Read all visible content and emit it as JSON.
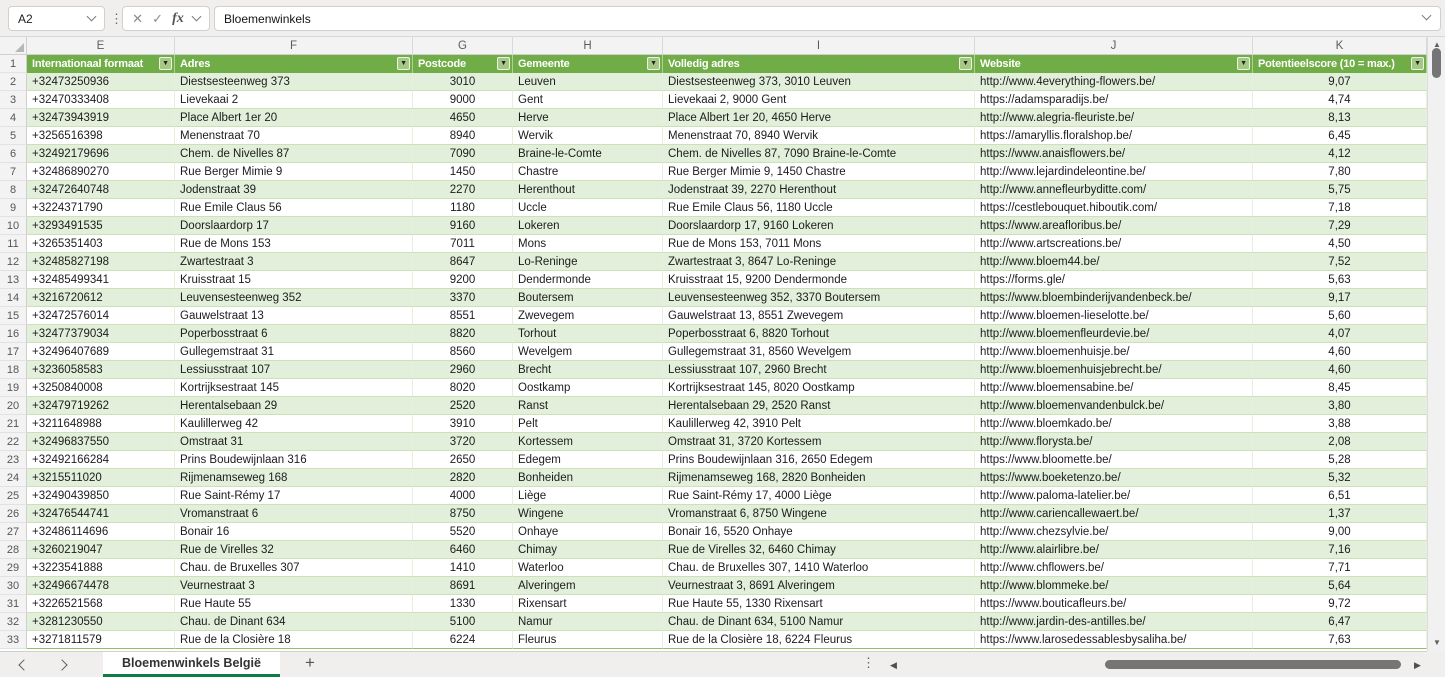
{
  "formula_bar": {
    "name_box": "A2",
    "formula": "Bloemenwinkels"
  },
  "icons": {
    "kebab": "⋮",
    "cancel": "✕",
    "confirm": "✓",
    "fx": "fx",
    "filter_arrow": "▼",
    "up": "▲",
    "down": "▼",
    "left": "◀",
    "right": "▶",
    "add": "+"
  },
  "colors": {
    "header_green": "#70AD47",
    "band_green": "#E2EFDA",
    "active_tab_green": "#107C41"
  },
  "grid": {
    "header_row_number": "1",
    "column_letters": [
      "E",
      "F",
      "G",
      "H",
      "I",
      "J",
      "K"
    ],
    "columns": [
      {
        "label": "Internationaal formaat"
      },
      {
        "label": "Adres"
      },
      {
        "label": "Postcode"
      },
      {
        "label": "Gemeente"
      },
      {
        "label": "Volledig adres"
      },
      {
        "label": "Website"
      },
      {
        "label": "Potentieelscore (10 = max.)"
      }
    ]
  },
  "rows": [
    {
      "row": "2",
      "phone": "+32473250936",
      "adres": "Diestsesteenweg 373",
      "postcode": "3010",
      "gemeente": "Leuven",
      "volledig": "Diestsesteenweg 373, 3010 Leuven",
      "website": "http://www.4everything-flowers.be/",
      "score": "9,07"
    },
    {
      "row": "3",
      "phone": "+32470333408",
      "adres": "Lievekaai 2",
      "postcode": "9000",
      "gemeente": "Gent",
      "volledig": "Lievekaai 2, 9000 Gent",
      "website": "https://adamsparadijs.be/",
      "score": "4,74"
    },
    {
      "row": "4",
      "phone": "+32473943919",
      "adres": "Place Albert 1er 20",
      "postcode": "4650",
      "gemeente": "Herve",
      "volledig": "Place Albert 1er 20, 4650 Herve",
      "website": "http://www.alegria-fleuriste.be/",
      "score": "8,13"
    },
    {
      "row": "5",
      "phone": "+3256516398",
      "adres": "Menenstraat 70",
      "postcode": "8940",
      "gemeente": "Wervik",
      "volledig": "Menenstraat 70, 8940 Wervik",
      "website": "https://amaryllis.floralshop.be/",
      "score": "6,45"
    },
    {
      "row": "6",
      "phone": "+32492179696",
      "adres": "Chem. de Nivelles 87",
      "postcode": "7090",
      "gemeente": "Braine-le-Comte",
      "volledig": "Chem. de Nivelles 87, 7090 Braine-le-Comte",
      "website": "https://www.anaisflowers.be/",
      "score": "4,12"
    },
    {
      "row": "7",
      "phone": "+32486890270",
      "adres": "Rue Berger Mimie 9",
      "postcode": "1450",
      "gemeente": "Chastre",
      "volledig": "Rue Berger Mimie 9, 1450 Chastre",
      "website": "http://www.lejardindeleontine.be/",
      "score": "7,80"
    },
    {
      "row": "8",
      "phone": "+32472640748",
      "adres": "Jodenstraat 39",
      "postcode": "2270",
      "gemeente": "Herenthout",
      "volledig": "Jodenstraat 39, 2270 Herenthout",
      "website": "http://www.annefleurbyditte.com/",
      "score": "5,75"
    },
    {
      "row": "9",
      "phone": "+3224371790",
      "adres": "Rue Emile Claus 56",
      "postcode": "1180",
      "gemeente": "Uccle",
      "volledig": "Rue Emile Claus 56, 1180 Uccle",
      "website": "https://cestlebouquet.hiboutik.com/",
      "score": "7,18"
    },
    {
      "row": "10",
      "phone": "+3293491535",
      "adres": "Doorslaardorp 17",
      "postcode": "9160",
      "gemeente": "Lokeren",
      "volledig": "Doorslaardorp 17, 9160 Lokeren",
      "website": "https://www.areafloribus.be/",
      "score": "7,29"
    },
    {
      "row": "11",
      "phone": "+3265351403",
      "adres": "Rue de Mons 153",
      "postcode": "7011",
      "gemeente": "Mons",
      "volledig": "Rue de Mons 153, 7011 Mons",
      "website": "http://www.artscreations.be/",
      "score": "4,50"
    },
    {
      "row": "12",
      "phone": "+32485827198",
      "adres": "Zwartestraat 3",
      "postcode": "8647",
      "gemeente": "Lo-Reninge",
      "volledig": "Zwartestraat 3, 8647 Lo-Reninge",
      "website": "http://www.bloem44.be/",
      "score": "7,52"
    },
    {
      "row": "13",
      "phone": "+32485499341",
      "adres": "Kruisstraat 15",
      "postcode": "9200",
      "gemeente": "Dendermonde",
      "volledig": "Kruisstraat 15, 9200 Dendermonde",
      "website": "https://forms.gle/",
      "score": "5,63"
    },
    {
      "row": "14",
      "phone": "+3216720612",
      "adres": "Leuvensesteenweg 352",
      "postcode": "3370",
      "gemeente": "Boutersem",
      "volledig": "Leuvensesteenweg 352, 3370 Boutersem",
      "website": "https://www.bloembinderijvandenbeck.be/",
      "score": "9,17"
    },
    {
      "row": "15",
      "phone": "+32472576014",
      "adres": "Gauwelstraat 13",
      "postcode": "8551",
      "gemeente": "Zwevegem",
      "volledig": "Gauwelstraat 13, 8551 Zwevegem",
      "website": "http://www.bloemen-lieselotte.be/",
      "score": "5,60"
    },
    {
      "row": "16",
      "phone": "+32477379034",
      "adres": "Poperbosstraat 6",
      "postcode": "8820",
      "gemeente": "Torhout",
      "volledig": "Poperbosstraat 6, 8820 Torhout",
      "website": "http://www.bloemenfleurdevie.be/",
      "score": "4,07"
    },
    {
      "row": "17",
      "phone": "+32496407689",
      "adres": "Gullegemstraat 31",
      "postcode": "8560",
      "gemeente": "Wevelgem",
      "volledig": "Gullegemstraat 31, 8560 Wevelgem",
      "website": "http://www.bloemenhuisje.be/",
      "score": "4,60"
    },
    {
      "row": "18",
      "phone": "+3236058583",
      "adres": "Lessiusstraat 107",
      "postcode": "2960",
      "gemeente": "Brecht",
      "volledig": "Lessiusstraat 107, 2960 Brecht",
      "website": "http://www.bloemenhuisjebrecht.be/",
      "score": "4,60"
    },
    {
      "row": "19",
      "phone": "+3250840008",
      "adres": "Kortrijksestraat 145",
      "postcode": "8020",
      "gemeente": "Oostkamp",
      "volledig": "Kortrijksestraat 145, 8020 Oostkamp",
      "website": "http://www.bloemensabine.be/",
      "score": "8,45"
    },
    {
      "row": "20",
      "phone": "+32479719262",
      "adres": "Herentalsebaan 29",
      "postcode": "2520",
      "gemeente": "Ranst",
      "volledig": "Herentalsebaan 29, 2520 Ranst",
      "website": "http://www.bloemenvandenbulck.be/",
      "score": "3,80"
    },
    {
      "row": "21",
      "phone": "+3211648988",
      "adres": "Kaulillerweg 42",
      "postcode": "3910",
      "gemeente": "Pelt",
      "volledig": "Kaulillerweg 42, 3910 Pelt",
      "website": "http://www.bloemkado.be/",
      "score": "3,88"
    },
    {
      "row": "22",
      "phone": "+32496837550",
      "adres": "Omstraat 31",
      "postcode": "3720",
      "gemeente": "Kortessem",
      "volledig": "Omstraat 31, 3720 Kortessem",
      "website": "http://www.florysta.be/",
      "score": "2,08"
    },
    {
      "row": "23",
      "phone": "+32492166284",
      "adres": "Prins Boudewijnlaan 316",
      "postcode": "2650",
      "gemeente": "Edegem",
      "volledig": "Prins Boudewijnlaan 316, 2650 Edegem",
      "website": "https://www.bloomette.be/",
      "score": "5,28"
    },
    {
      "row": "24",
      "phone": "+3215511020",
      "adres": "Rijmenamseweg 168",
      "postcode": "2820",
      "gemeente": "Bonheiden",
      "volledig": "Rijmenamseweg 168, 2820 Bonheiden",
      "website": "https://www.boeketenzo.be/",
      "score": "5,32"
    },
    {
      "row": "25",
      "phone": "+32490439850",
      "adres": "Rue Saint-Rémy 17",
      "postcode": "4000",
      "gemeente": "Liège",
      "volledig": "Rue Saint-Rémy 17, 4000 Liège",
      "website": "http://www.paloma-latelier.be/",
      "score": "6,51"
    },
    {
      "row": "26",
      "phone": "+32476544741",
      "adres": "Vromanstraat 6",
      "postcode": "8750",
      "gemeente": "Wingene",
      "volledig": "Vromanstraat 6, 8750 Wingene",
      "website": "http://www.cariencallewaert.be/",
      "score": "1,37"
    },
    {
      "row": "27",
      "phone": "+32486114696",
      "adres": "Bonair 16",
      "postcode": "5520",
      "gemeente": "Onhaye",
      "volledig": "Bonair 16, 5520 Onhaye",
      "website": "http://www.chezsylvie.be/",
      "score": "9,00"
    },
    {
      "row": "28",
      "phone": "+3260219047",
      "adres": "Rue de Virelles 32",
      "postcode": "6460",
      "gemeente": "Chimay",
      "volledig": "Rue de Virelles 32, 6460 Chimay",
      "website": "http://www.alairlibre.be/",
      "score": "7,16"
    },
    {
      "row": "29",
      "phone": "+3223541888",
      "adres": "Chau. de Bruxelles 307",
      "postcode": "1410",
      "gemeente": "Waterloo",
      "volledig": "Chau. de Bruxelles 307, 1410 Waterloo",
      "website": "http://www.chflowers.be/",
      "score": "7,71"
    },
    {
      "row": "30",
      "phone": "+32496674478",
      "adres": "Veurnestraat 3",
      "postcode": "8691",
      "gemeente": "Alveringem",
      "volledig": "Veurnestraat 3, 8691 Alveringem",
      "website": "http://www.blommeke.be/",
      "score": "5,64"
    },
    {
      "row": "31",
      "phone": "+3226521568",
      "adres": "Rue Haute 55",
      "postcode": "1330",
      "gemeente": "Rixensart",
      "volledig": "Rue Haute 55, 1330 Rixensart",
      "website": "https://www.bouticafleurs.be/",
      "score": "9,72"
    },
    {
      "row": "32",
      "phone": "+3281230550",
      "adres": "Chau. de Dinant 634",
      "postcode": "5100",
      "gemeente": "Namur",
      "volledig": "Chau. de Dinant 634, 5100 Namur",
      "website": "http://www.jardin-des-antilles.be/",
      "score": "6,47"
    },
    {
      "row": "33",
      "phone": "+3271811579",
      "adres": "Rue de la Closière 18",
      "postcode": "6224",
      "gemeente": "Fleurus",
      "volledig": "Rue de la Closière 18, 6224 Fleurus",
      "website": "https://www.larosedessablesbysaliha.be/",
      "score": "7,63"
    }
  ],
  "sheet_bar": {
    "tab": "Bloemenwinkels België"
  }
}
